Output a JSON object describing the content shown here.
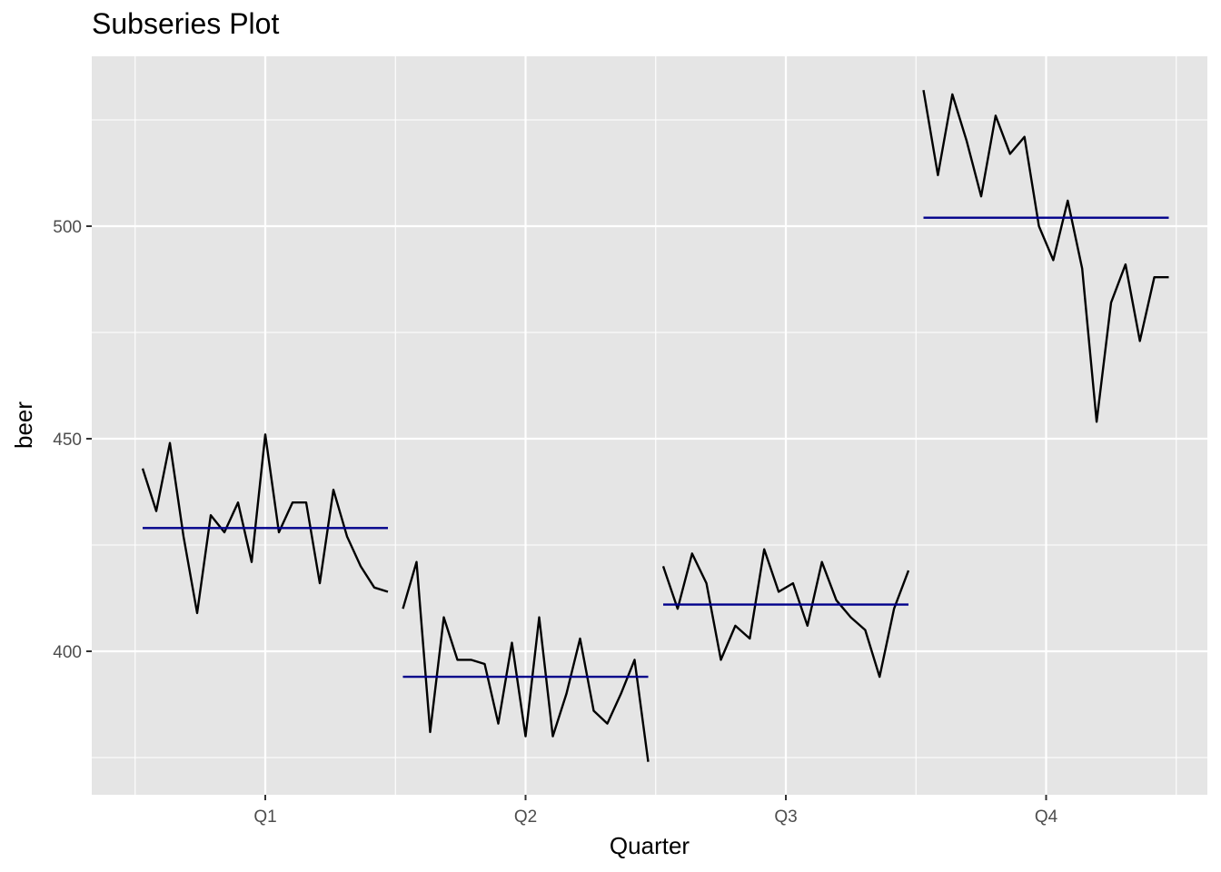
{
  "chart_data": {
    "type": "line",
    "title": "Subseries Plot",
    "xlabel": "Quarter",
    "ylabel": "beer",
    "ylim": [
      370,
      540
    ],
    "yticks": [
      400,
      450,
      500
    ],
    "grid": true,
    "legend": "none",
    "colors": {
      "panel_bg": "#e5e5e5",
      "grid": "#ffffff",
      "series_line": "#000000",
      "mean_line": "#00008b"
    },
    "panels": [
      {
        "label": "Q1",
        "mean": 429,
        "values": [
          443,
          433,
          449,
          427,
          409,
          432,
          428,
          435,
          421,
          451,
          428,
          435,
          435,
          416,
          438,
          427,
          420,
          415,
          414
        ]
      },
      {
        "label": "Q2",
        "mean": 394,
        "values": [
          410,
          421,
          381,
          408,
          398,
          398,
          397,
          383,
          402,
          380,
          408,
          380,
          390,
          403,
          386,
          383,
          390,
          398,
          374
        ]
      },
      {
        "label": "Q3",
        "mean": 411,
        "values": [
          420,
          410,
          423,
          416,
          398,
          406,
          403,
          424,
          414,
          416,
          406,
          421,
          412,
          408,
          405,
          394,
          410,
          419
        ]
      },
      {
        "label": "Q4",
        "mean": 502,
        "values": [
          532,
          512,
          531,
          520,
          507,
          526,
          517,
          521,
          500,
          492,
          506,
          490,
          454,
          482,
          491,
          473,
          488,
          488
        ]
      }
    ]
  }
}
